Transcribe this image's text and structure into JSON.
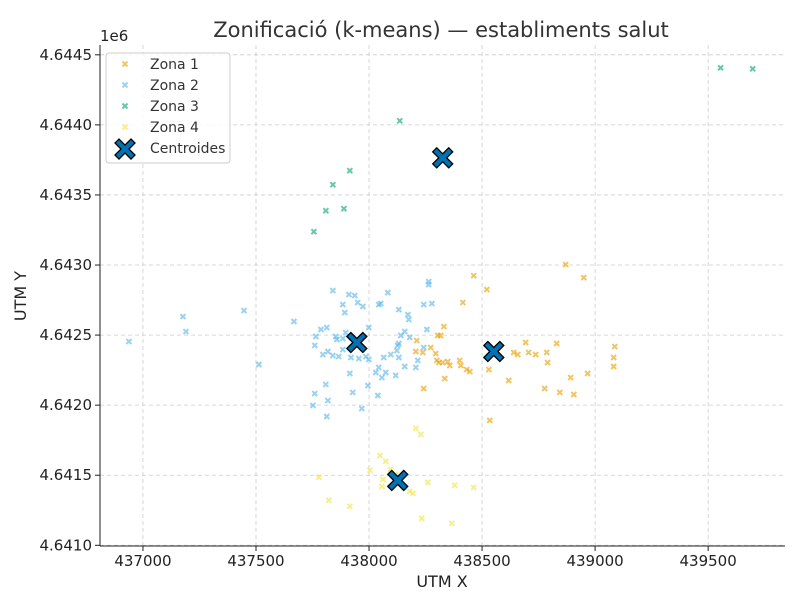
{
  "chart_data": {
    "type": "scatter",
    "title": "Zonificació (k-means) — establiments salut",
    "xlabel": "UTM X",
    "ylabel": "UTM Y",
    "y_offset_label": "1e6",
    "xlim": [
      436810,
      439840
    ],
    "ylim": [
      4640995,
      4644570
    ],
    "xticks": [
      437000,
      437500,
      438000,
      438500,
      439000,
      439500
    ],
    "xtick_labels": [
      "437000",
      "437500",
      "438000",
      "438500",
      "439000",
      "439500"
    ],
    "yticks": [
      4641000,
      4641500,
      4642000,
      4642500,
      4643000,
      4643500,
      4644000,
      4644500
    ],
    "ytick_labels": [
      "4.6410",
      "4.6415",
      "4.6420",
      "4.6425",
      "4.6430",
      "4.6435",
      "4.6440",
      "4.6445"
    ],
    "grid": true,
    "legend_position": "top-left",
    "series": [
      {
        "name": "Zona 1",
        "color": "#E69F00",
        "marker": "x",
        "x": [
          438463,
          438521,
          438870,
          438950,
          438415,
          438331,
          438304,
          438317,
          438211,
          438207,
          438295,
          438273,
          438348,
          438357,
          438401,
          438406,
          438432,
          438446,
          438242,
          438335,
          438309,
          438300,
          438693,
          438640,
          438658,
          438706,
          438737,
          438786,
          438830,
          438790,
          438530,
          438618,
          438777,
          438844,
          438892,
          438906,
          438967,
          439087,
          439082,
          439082,
          438534,
          438326,
          438238
        ],
        "y": [
          4642924,
          4642825,
          4643003,
          4642910,
          4642732,
          4642561,
          4642497,
          4642497,
          4642461,
          4642383,
          4642368,
          4642411,
          4642311,
          4642283,
          4642319,
          4642283,
          4642254,
          4642240,
          4642119,
          4642190,
          4642304,
          4642319,
          4642447,
          4642376,
          4642361,
          4642376,
          4642361,
          4642376,
          4642440,
          4642304,
          4642254,
          4642176,
          4642119,
          4642091,
          4642197,
          4642076,
          4642226,
          4642418,
          4642340,
          4642276,
          4641891,
          4642304,
          4642376
        ]
      },
      {
        "name": "Zona 2",
        "color": "#56B4E9",
        "marker": "x",
        "x": [
          437177,
          437190,
          437447,
          437668,
          437513,
          437840,
          437911,
          437937,
          437884,
          437950,
          437973,
          437893,
          437813,
          437787,
          437765,
          437897,
          437853,
          437858,
          437884,
          437760,
          437818,
          437796,
          437840,
          437866,
          437884,
          437920,
          437955,
          437986,
          437999,
          437999,
          437915,
          437809,
          437760,
          437928,
          437818,
          437752,
          437813,
          437968,
          437995,
          438039,
          438030,
          438043,
          438057,
          438074,
          438118,
          438065,
          438096,
          438123,
          438127,
          438132,
          438132,
          438158,
          438158,
          438141,
          438180,
          438172,
          438176,
          438132,
          438083,
          438043,
          438052,
          438242,
          438278,
          438264,
          438264,
          438256,
          438242,
          438216,
          438207,
          436938
        ],
        "y": [
          4642632,
          4642525,
          4642675,
          4642597,
          4642290,
          4642818,
          4642789,
          4642782,
          4642718,
          4642732,
          4642704,
          4642661,
          4642554,
          4642540,
          4642490,
          4642518,
          4642490,
          4642468,
          4642475,
          4642426,
          4642383,
          4642361,
          4642354,
          4642347,
          4642397,
          4642340,
          4642333,
          4642347,
          4642554,
          4642326,
          4642226,
          4642148,
          4642083,
          4642091,
          4642033,
          4641998,
          4641919,
          4641976,
          4642140,
          4642069,
          4642233,
          4642269,
          4642197,
          4642233,
          4642212,
          4642340,
          4642361,
          4642390,
          4642426,
          4642440,
          4642340,
          4642276,
          4642525,
          4642497,
          4642483,
          4642646,
          4642611,
          4642682,
          4642803,
          4642718,
          4642725,
          4642718,
          4642725,
          4642882,
          4642860,
          4642540,
          4642411,
          4642319,
          4642269,
          4642454
        ]
      },
      {
        "name": "Zona 3",
        "color": "#009E73",
        "marker": "x",
        "x": [
          439555,
          439697,
          438136,
          437915,
          437840,
          437889,
          437809,
          437756
        ],
        "y": [
          4644407,
          4644400,
          4644029,
          4643673,
          4643573,
          4643402,
          4643388,
          4643238
        ]
      },
      {
        "name": "Zona 4",
        "color": "#F0E442",
        "marker": "x",
        "x": [
          438207,
          438229,
          438048,
          438074,
          438096,
          438118,
          438004,
          438061,
          438057,
          438154,
          438180,
          438194,
          438260,
          438379,
          438463,
          437778,
          437822,
          437915,
          438233,
          438366
        ],
        "y": [
          4641834,
          4641791,
          4641641,
          4641599,
          4641542,
          4641506,
          4641535,
          4641470,
          4641420,
          4641413,
          4641385,
          4641371,
          4641449,
          4641428,
          4641413,
          4641485,
          4641321,
          4641278,
          4641192,
          4641157
        ]
      },
      {
        "name": "Centroides",
        "color": "#0072B2",
        "marker": "X",
        "x": [
          438326,
          437946,
          438552,
          438127
        ],
        "y": [
          4643765,
          4642447,
          4642383,
          4641463
        ]
      }
    ]
  }
}
